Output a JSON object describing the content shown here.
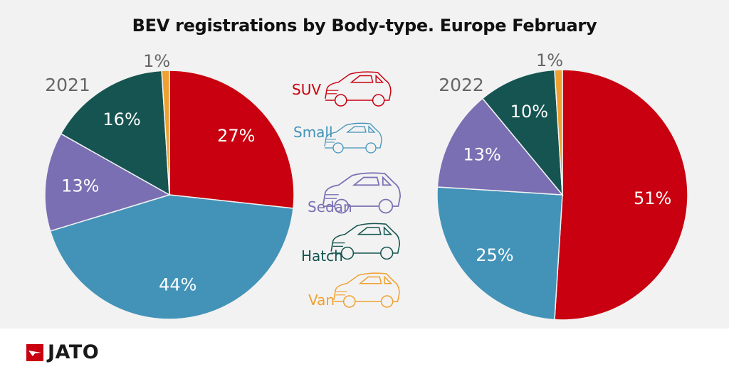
{
  "title": "BEV registrations by Body-type. Europe February",
  "brand": "JATO",
  "chart_data": [
    {
      "type": "pie",
      "label": "2021",
      "categories": [
        "SUV",
        "Small",
        "Sedan",
        "Hatch",
        "Van"
      ],
      "values": [
        27,
        44,
        13,
        16,
        1
      ],
      "value_labels": [
        "27%",
        "44%",
        "13%",
        "16%",
        "1%"
      ],
      "colors": [
        "#c8000f",
        "#4393b8",
        "#7a6fb3",
        "#155450",
        "#f0a030"
      ]
    },
    {
      "type": "pie",
      "label": "2022",
      "categories": [
        "SUV",
        "Small",
        "Sedan",
        "Hatch",
        "Van"
      ],
      "values": [
        51,
        25,
        13,
        10,
        1
      ],
      "value_labels": [
        "51%",
        "25%",
        "13%",
        "10%",
        "1%"
      ],
      "colors": [
        "#c8000f",
        "#4393b8",
        "#7a6fb3",
        "#155450",
        "#f0a030"
      ]
    }
  ],
  "legend": [
    {
      "label": "SUV",
      "color": "#c8000f",
      "icon": "suv-car-icon"
    },
    {
      "label": "Small",
      "color": "#4393b8",
      "icon": "small-car-icon"
    },
    {
      "label": "Sedan",
      "color": "#7a6fb3",
      "icon": "sedan-car-icon"
    },
    {
      "label": "Hatch",
      "color": "#155450",
      "icon": "hatch-car-icon"
    },
    {
      "label": "Van",
      "color": "#f0a030",
      "icon": "van-car-icon"
    }
  ]
}
